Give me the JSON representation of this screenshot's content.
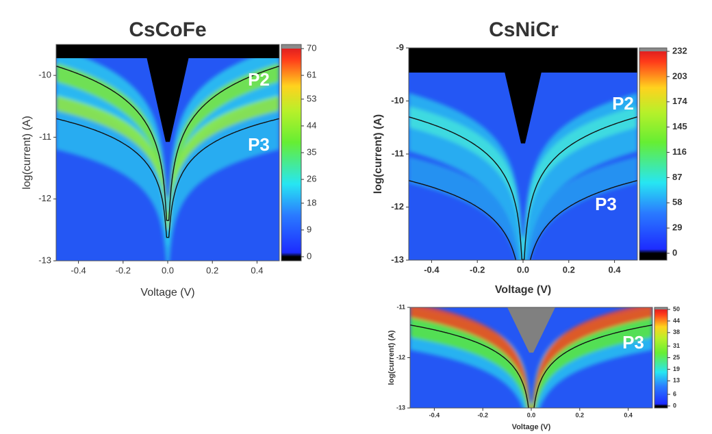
{
  "chart_data": [
    {
      "type": "heatmap",
      "title": "CsCoFe",
      "xlabel": "Voltage (V)",
      "ylabel": "log(current) (A)",
      "xlim": [
        -0.5,
        0.5
      ],
      "ylim": [
        -13,
        -9.5
      ],
      "xticks": [
        -0.4,
        -0.2,
        {
          "value": 0,
          "label": "0.0"
        },
        0.2,
        0.4
      ],
      "yticks": [
        -13,
        -12,
        -11,
        -10
      ],
      "clim": [
        0,
        70
      ],
      "cticks": [
        0,
        9,
        18,
        26,
        35,
        44,
        53,
        61,
        70
      ],
      "annotations": [
        "P2",
        "P3"
      ]
    },
    {
      "type": "heatmap",
      "title": "CsNiCr",
      "xlabel": "Voltage (V)",
      "ylabel": "log(current) (A)",
      "xlim": [
        -0.5,
        0.5
      ],
      "ylim": [
        -13,
        -9
      ],
      "xticks": [
        -0.4,
        -0.2,
        {
          "value": 0,
          "label": "0.0"
        },
        0.2,
        0.4
      ],
      "yticks": [
        -13,
        -12,
        -11,
        -10,
        -9
      ],
      "clim": [
        0,
        232
      ],
      "cticks": [
        0,
        29,
        58,
        87,
        116,
        145,
        174,
        203,
        232
      ],
      "annotations": [
        "P2",
        "P3"
      ]
    },
    {
      "type": "heatmap",
      "xlabel": "Voltage (V)",
      "ylabel": "log(current) (A)",
      "xlim": [
        -0.5,
        0.5
      ],
      "ylim": [
        -13,
        -11
      ],
      "xticks": [
        -0.4,
        -0.2,
        {
          "value": 0,
          "label": "0.0"
        },
        0.2,
        0.4
      ],
      "yticks": [
        -13,
        -12,
        -11
      ],
      "clim": [
        0,
        50
      ],
      "cticks": [
        0,
        6,
        13,
        19,
        25,
        31,
        38,
        44,
        50
      ],
      "annotations": [
        "P3"
      ]
    }
  ]
}
